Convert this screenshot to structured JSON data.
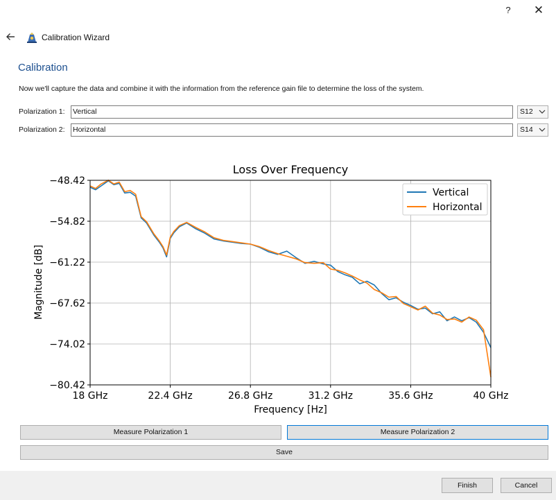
{
  "window": {
    "help_label": "?",
    "close_label": "✕"
  },
  "wizard": {
    "title": "Calibration Wizard",
    "heading": "Calibration",
    "description": "Now we'll capture the data and combine it with the information from the reference gain file to determine the loss of the system."
  },
  "polarizations": [
    {
      "label": "Polarization 1:",
      "value": "Vertical",
      "port": "S12"
    },
    {
      "label": "Polarization 2:",
      "value": "Horizontal",
      "port": "S14"
    }
  ],
  "buttons": {
    "measure_1": "Measure Polarization 1",
    "measure_2": "Measure Polarization 2",
    "save": "Save",
    "finish": "Finish",
    "cancel": "Cancel"
  },
  "colors": {
    "accent": "#1c4f8f",
    "vertical": "#1f77b4",
    "horizontal": "#ff7f0e"
  },
  "chart_data": {
    "type": "line",
    "title": "Loss Over Frequency",
    "xlabel": "Frequency [Hz]",
    "ylabel": "Magnitude [dB]",
    "xlim": [
      18,
      40
    ],
    "ylim": [
      -80.42,
      -48.42
    ],
    "xticks": [
      18,
      22.4,
      26.8,
      31.2,
      35.6,
      40
    ],
    "xtick_labels": [
      "18 GHz",
      "22.4 GHz",
      "26.8 GHz",
      "31.2 GHz",
      "35.6 GHz",
      "40 GHz"
    ],
    "yticks": [
      -48.42,
      -54.82,
      -61.22,
      -67.62,
      -74.02,
      -80.42
    ],
    "ytick_labels": [
      "−48.42",
      "−54.82",
      "−61.22",
      "−67.62",
      "−74.02",
      "−80.42"
    ],
    "grid": true,
    "legend_position": "top-right",
    "series": [
      {
        "name": "Vertical",
        "color": "#1f77b4",
        "x": [
          18.0,
          18.3,
          18.6,
          19.0,
          19.3,
          19.6,
          19.9,
          20.2,
          20.5,
          20.8,
          21.1,
          21.5,
          21.8,
          22.0,
          22.2,
          22.4,
          22.6,
          22.9,
          23.3,
          23.8,
          24.3,
          24.8,
          25.3,
          25.8,
          26.3,
          26.8,
          27.3,
          27.8,
          28.3,
          28.8,
          29.3,
          29.8,
          30.3,
          30.8,
          31.2,
          31.6,
          32.0,
          32.4,
          32.8,
          33.2,
          33.6,
          34.0,
          34.4,
          34.8,
          35.2,
          35.6,
          36.0,
          36.4,
          36.8,
          37.2,
          37.6,
          38.0,
          38.4,
          38.8,
          39.2,
          39.6,
          40.0
        ],
        "y": [
          -49.5,
          -49.9,
          -49.3,
          -48.5,
          -49.1,
          -48.9,
          -50.4,
          -50.3,
          -50.9,
          -54.3,
          -55.1,
          -57.0,
          -58.1,
          -59.0,
          -60.4,
          -57.5,
          -56.6,
          -55.7,
          -55.1,
          -56.0,
          -56.7,
          -57.6,
          -57.9,
          -58.1,
          -58.3,
          -58.4,
          -58.9,
          -59.6,
          -60.0,
          -59.5,
          -60.5,
          -61.4,
          -61.1,
          -61.5,
          -61.7,
          -62.7,
          -63.2,
          -63.6,
          -64.6,
          -64.2,
          -64.8,
          -66.1,
          -67.1,
          -66.8,
          -67.5,
          -68.0,
          -68.6,
          -68.4,
          -69.3,
          -69.0,
          -70.4,
          -69.8,
          -70.4,
          -69.9,
          -70.6,
          -72.2,
          -74.6
        ]
      },
      {
        "name": "Horizontal",
        "color": "#ff7f0e",
        "x": [
          18.0,
          18.3,
          18.6,
          19.0,
          19.3,
          19.6,
          19.9,
          20.2,
          20.5,
          20.8,
          21.1,
          21.5,
          21.8,
          22.0,
          22.2,
          22.4,
          22.6,
          22.9,
          23.3,
          23.8,
          24.3,
          24.8,
          25.3,
          25.8,
          26.3,
          26.8,
          27.3,
          27.8,
          28.3,
          28.8,
          29.3,
          29.8,
          30.3,
          30.8,
          31.2,
          31.6,
          32.0,
          32.4,
          32.8,
          33.2,
          33.6,
          34.0,
          34.4,
          34.8,
          35.2,
          35.6,
          36.0,
          36.4,
          36.8,
          37.2,
          37.6,
          38.0,
          38.4,
          38.8,
          39.2,
          39.6,
          40.0
        ],
        "y": [
          -49.3,
          -49.7,
          -49.0,
          -48.4,
          -49.0,
          -48.7,
          -50.2,
          -50.0,
          -50.6,
          -54.1,
          -54.9,
          -56.8,
          -57.9,
          -58.8,
          -60.1,
          -57.3,
          -56.4,
          -55.5,
          -55.0,
          -55.8,
          -56.5,
          -57.4,
          -57.8,
          -58.0,
          -58.2,
          -58.4,
          -58.8,
          -59.4,
          -59.9,
          -60.3,
          -60.7,
          -61.3,
          -61.4,
          -61.3,
          -62.3,
          -62.5,
          -62.9,
          -63.4,
          -64.0,
          -64.5,
          -65.5,
          -66.0,
          -66.7,
          -66.6,
          -67.7,
          -68.2,
          -68.7,
          -68.1,
          -69.2,
          -69.5,
          -70.2,
          -70.1,
          -70.6,
          -69.8,
          -70.3,
          -71.8,
          -79.2
        ]
      }
    ]
  }
}
